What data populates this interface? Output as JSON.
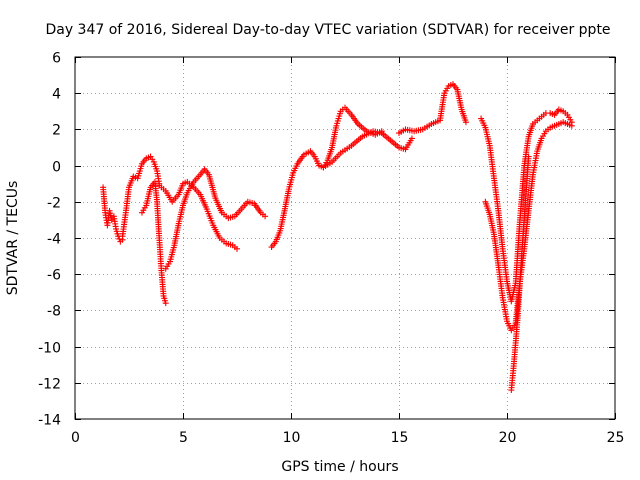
{
  "chart_data": {
    "type": "scatter",
    "title": "Day 347 of 2016, Sidereal Day-to-day VTEC variation (SDTVAR) for receiver ppte",
    "xlabel": "GPS time / hours",
    "ylabel": "SDTVAR / TECUs",
    "xlim": [
      0,
      25
    ],
    "ylim": [
      -14,
      6
    ],
    "xticks": [
      0,
      5,
      10,
      15,
      20,
      25
    ],
    "yticks": [
      -14,
      -12,
      -10,
      -8,
      -6,
      -4,
      -2,
      0,
      2,
      4,
      6
    ],
    "xtick_labels": [
      "0",
      "5",
      "10",
      "15",
      "20",
      "25"
    ],
    "ytick_labels": [
      "-14",
      "-12",
      "-10",
      "-8",
      "-6",
      "-4",
      "-2",
      "0",
      "2",
      "4",
      "6"
    ],
    "grid": true,
    "marker": "plus",
    "color": "#ff0000",
    "series": [
      {
        "x": [
          1.3,
          1.4,
          1.5,
          1.6,
          1.7,
          1.8,
          1.9,
          2.0,
          2.1,
          2.2
        ],
        "y": [
          -1.2,
          -2.6,
          -3.3,
          -2.5,
          -3.0,
          -2.8,
          -3.5,
          -3.9,
          -4.2,
          -4.1
        ]
      },
      {
        "x": [
          2.2,
          2.35,
          2.5,
          2.7,
          2.9,
          3.1,
          3.3,
          3.5,
          3.65,
          3.8,
          3.9
        ],
        "y": [
          -3.9,
          -2.6,
          -1.2,
          -0.6,
          -0.7,
          0.1,
          0.4,
          0.5,
          0.2,
          -0.3,
          -1.0
        ]
      },
      {
        "x": [
          3.1,
          3.3,
          3.5,
          3.7,
          3.8,
          3.9,
          4.0,
          4.1,
          4.2
        ],
        "y": [
          -2.6,
          -2.2,
          -1.2,
          -0.9,
          -2.0,
          -4.0,
          -5.8,
          -7.2,
          -7.6
        ]
      },
      {
        "x": [
          4.2,
          4.4,
          4.6,
          4.8,
          5.0,
          5.2,
          5.5,
          5.8,
          6.0,
          6.2,
          6.5,
          6.8,
          7.1,
          7.4,
          7.7,
          8.0,
          8.3,
          8.6,
          8.8
        ],
        "y": [
          -5.7,
          -5.3,
          -4.4,
          -3.2,
          -2.2,
          -1.5,
          -0.9,
          -0.5,
          -0.2,
          -0.5,
          -1.8,
          -2.6,
          -2.9,
          -2.8,
          -2.4,
          -2.0,
          -2.1,
          -2.6,
          -2.8
        ]
      },
      {
        "x": [
          3.9,
          4.2,
          4.5,
          4.8,
          5.0,
          5.2,
          5.5,
          5.8,
          6.1,
          6.4,
          6.7,
          7.0,
          7.3,
          7.5
        ],
        "y": [
          -1.1,
          -1.4,
          -2.0,
          -1.6,
          -1.0,
          -0.9,
          -1.2,
          -1.6,
          -2.4,
          -3.3,
          -4.0,
          -4.3,
          -4.4,
          -4.6
        ]
      },
      {
        "x": [
          9.1,
          9.3,
          9.5,
          9.7,
          9.9,
          10.1,
          10.3,
          10.6,
          10.9,
          11.1,
          11.3,
          11.5,
          11.7,
          11.9,
          12.1,
          12.3,
          12.5,
          12.8,
          13.1,
          13.5,
          13.9,
          14.2
        ],
        "y": [
          -4.5,
          -4.2,
          -3.6,
          -2.5,
          -1.3,
          -0.4,
          0.1,
          0.6,
          0.8,
          0.5,
          0.0,
          -0.1,
          0.3,
          1.0,
          2.2,
          3.0,
          3.2,
          2.8,
          2.3,
          1.9,
          1.7,
          1.9
        ]
      },
      {
        "x": [
          11.5,
          11.9,
          12.3,
          12.8,
          13.3,
          13.8,
          14.2,
          14.6,
          15.0,
          15.3,
          15.6
        ],
        "y": [
          -0.1,
          0.2,
          0.7,
          1.1,
          1.6,
          1.9,
          1.8,
          1.4,
          1.0,
          0.9,
          1.5
        ]
      },
      {
        "x": [
          15.0,
          15.3,
          15.7,
          16.1,
          16.5,
          16.9,
          17.1,
          17.3,
          17.5,
          17.7,
          17.9,
          18.1
        ],
        "y": [
          1.8,
          2.0,
          1.9,
          2.0,
          2.3,
          2.5,
          4.0,
          4.4,
          4.5,
          4.2,
          3.1,
          2.4
        ]
      },
      {
        "x": [
          18.8,
          19.0,
          19.2,
          19.4,
          19.6,
          19.8,
          20.0,
          20.2,
          20.4,
          20.6,
          20.8,
          21.0,
          21.2,
          21.4,
          21.6,
          21.8,
          22.0,
          22.2,
          22.4,
          22.6,
          22.8,
          23.0
        ],
        "y": [
          2.6,
          2.1,
          1.1,
          -0.7,
          -2.5,
          -4.6,
          -6.4,
          -7.5,
          -6.5,
          -3.0,
          0.0,
          1.6,
          2.3,
          2.5,
          2.7,
          2.9,
          2.9,
          2.8,
          3.1,
          3.0,
          2.8,
          2.4
        ]
      },
      {
        "x": [
          19.0,
          19.2,
          19.4,
          19.6,
          19.8,
          20.0,
          20.2,
          20.4,
          20.6,
          20.8,
          21.0,
          21.2,
          21.4,
          21.6,
          21.8,
          22.0,
          22.2,
          22.4,
          22.6,
          22.8,
          23.0
        ],
        "y": [
          -2.0,
          -2.7,
          -3.8,
          -5.5,
          -7.3,
          -8.6,
          -9.1,
          -8.7,
          -6.4,
          -4.6,
          -2.5,
          -0.5,
          0.8,
          1.5,
          1.9,
          2.1,
          2.2,
          2.3,
          2.4,
          2.3,
          2.2
        ]
      },
      {
        "x": [
          20.2,
          20.3,
          20.4,
          20.5,
          20.6,
          20.7,
          20.8,
          20.9,
          21.0
        ],
        "y": [
          -12.4,
          -11.2,
          -9.8,
          -8.3,
          -6.4,
          -4.6,
          -2.9,
          -1.2,
          0.5
        ]
      }
    ]
  }
}
